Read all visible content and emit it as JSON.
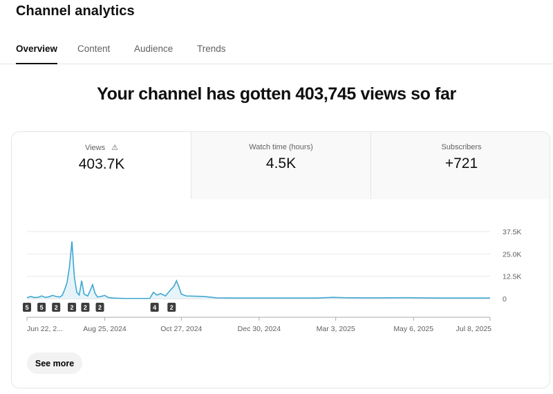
{
  "header": {
    "title": "Channel analytics"
  },
  "tabs": [
    {
      "label": "Overview",
      "active": true
    },
    {
      "label": "Content"
    },
    {
      "label": "Audience"
    },
    {
      "label": "Trends"
    }
  ],
  "headline": "Your channel has gotten 403,745 views so far",
  "metrics": [
    {
      "label": "Views",
      "value": "403.7K",
      "icon": "warning-icon",
      "selected": true
    },
    {
      "label": "Watch time (hours)",
      "value": "4.5K"
    },
    {
      "label": "Subscribers",
      "value": "+721"
    }
  ],
  "see_more": "See more",
  "colors": {
    "line": "#3ea6d0",
    "fill": "#e6f4fa",
    "marker": "#3d3d3d"
  },
  "chart_data": {
    "type": "line",
    "y_ticks": [
      "37.5K",
      "25.0K",
      "12.5K",
      "0"
    ],
    "ylim": [
      0,
      37500
    ],
    "x_ticks": [
      "Jun 22, 2...",
      "Aug 25, 2024",
      "Oct 27, 2024",
      "Dec 30, 2024",
      "Mar 3, 2025",
      "May 6, 2025",
      "Jul 8, 2025"
    ],
    "x_tick_dates": [
      "2024-06-22",
      "2024-08-25",
      "2024-10-27",
      "2024-12-30",
      "2025-03-03",
      "2025-05-06",
      "2025-07-08"
    ],
    "xlim": [
      "2024-06-22",
      "2025-07-08"
    ],
    "grid": true,
    "series": [
      {
        "points": [
          [
            "2024-06-22",
            500
          ],
          [
            "2024-06-25",
            1200
          ],
          [
            "2024-06-28",
            600
          ],
          [
            "2024-07-01",
            700
          ],
          [
            "2024-07-04",
            1500
          ],
          [
            "2024-07-07",
            700
          ],
          [
            "2024-07-10",
            1000
          ],
          [
            "2024-07-13",
            1800
          ],
          [
            "2024-07-16",
            1200
          ],
          [
            "2024-07-19",
            900
          ],
          [
            "2024-07-21",
            1800
          ],
          [
            "2024-07-23",
            5000
          ],
          [
            "2024-07-25",
            9000
          ],
          [
            "2024-07-27",
            18000
          ],
          [
            "2024-07-29",
            32000
          ],
          [
            "2024-07-31",
            12000
          ],
          [
            "2024-08-02",
            3500
          ],
          [
            "2024-08-04",
            2000
          ],
          [
            "2024-08-06",
            10000
          ],
          [
            "2024-08-08",
            2500
          ],
          [
            "2024-08-11",
            1500
          ],
          [
            "2024-08-13",
            4500
          ],
          [
            "2024-08-15",
            7800
          ],
          [
            "2024-08-17",
            3000
          ],
          [
            "2024-08-19",
            900
          ],
          [
            "2024-08-22",
            1200
          ],
          [
            "2024-08-25",
            1800
          ],
          [
            "2024-08-28",
            600
          ],
          [
            "2024-09-01",
            300
          ],
          [
            "2024-09-10",
            100
          ],
          [
            "2024-09-20",
            100
          ],
          [
            "2024-10-01",
            100
          ],
          [
            "2024-10-04",
            3500
          ],
          [
            "2024-10-07",
            2000
          ],
          [
            "2024-10-10",
            2800
          ],
          [
            "2024-10-14",
            1500
          ],
          [
            "2024-10-17",
            4000
          ],
          [
            "2024-10-21",
            7000
          ],
          [
            "2024-10-23",
            10000
          ],
          [
            "2024-10-25",
            6500
          ],
          [
            "2024-10-27",
            2500
          ],
          [
            "2024-10-31",
            1500
          ],
          [
            "2024-11-15",
            1200
          ],
          [
            "2024-11-25",
            400
          ],
          [
            "2024-12-10",
            300
          ],
          [
            "2025-01-15",
            300
          ],
          [
            "2025-02-15",
            300
          ],
          [
            "2025-03-01",
            700
          ],
          [
            "2025-03-10",
            500
          ],
          [
            "2025-04-01",
            400
          ],
          [
            "2025-05-01",
            500
          ],
          [
            "2025-06-01",
            300
          ],
          [
            "2025-07-08",
            300
          ]
        ]
      }
    ],
    "markers": [
      {
        "date": "2024-06-22",
        "label": "5"
      },
      {
        "date": "2024-07-04",
        "label": "5"
      },
      {
        "date": "2024-07-16",
        "label": "2"
      },
      {
        "date": "2024-07-29",
        "label": "2"
      },
      {
        "date": "2024-08-09",
        "label": "2"
      },
      {
        "date": "2024-08-21",
        "label": "2"
      },
      {
        "date": "2024-10-05",
        "label": "4"
      },
      {
        "date": "2024-10-19",
        "label": "2"
      }
    ]
  }
}
